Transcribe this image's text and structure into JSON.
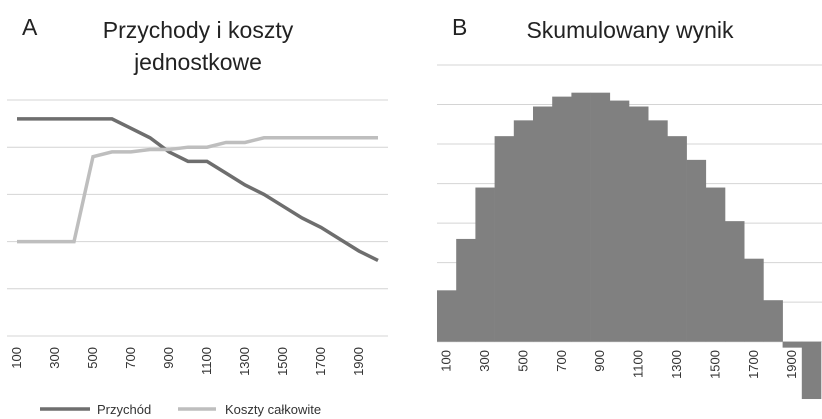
{
  "chart_data": [
    {
      "type": "line",
      "label": "A",
      "title": "Przychody i koszty jednostkowe",
      "categories": [
        100,
        null,
        300,
        null,
        500,
        null,
        700,
        null,
        900,
        null,
        1100,
        null,
        1300,
        null,
        1500,
        null,
        1700,
        null,
        1900,
        null
      ],
      "series": [
        {
          "name": "Przychód",
          "color": "#6e6e6e",
          "values": [
            4.6,
            4.6,
            4.6,
            4.6,
            4.6,
            4.6,
            4.4,
            4.2,
            3.9,
            3.7,
            3.7,
            3.45,
            3.2,
            3.0,
            2.75,
            2.5,
            2.3,
            2.05,
            1.8,
            1.6
          ]
        },
        {
          "name": "Koszty całkowite",
          "color": "#bebebe",
          "values": [
            2.0,
            2.0,
            2.0,
            2.0,
            3.8,
            3.9,
            3.9,
            3.95,
            3.95,
            4.0,
            4.0,
            4.1,
            4.1,
            4.2,
            4.2,
            4.2,
            4.2,
            4.2,
            4.2,
            4.2
          ]
        }
      ],
      "ylim": [
        0,
        5
      ],
      "yticks": [
        0,
        1,
        2,
        3,
        4,
        5
      ],
      "grid": true,
      "legend": "bottom"
    },
    {
      "type": "bar",
      "label": "B",
      "title": "Skumulowany wynik",
      "categories": [
        100,
        null,
        300,
        null,
        500,
        null,
        700,
        null,
        900,
        null,
        1100,
        null,
        1300,
        null,
        1500,
        null,
        1700,
        null,
        1900,
        null
      ],
      "values": [
        1.3,
        2.6,
        3.9,
        5.2,
        5.6,
        5.95,
        6.2,
        6.3,
        6.3,
        6.1,
        5.95,
        5.6,
        5.2,
        4.6,
        3.9,
        3.05,
        2.1,
        1.05,
        -0.15,
        -1.45
      ],
      "color": "#808080",
      "ylim": [
        -1.5,
        7
      ],
      "yticks": [
        0,
        1,
        2,
        3,
        4,
        5,
        6,
        7
      ],
      "grid": true
    }
  ]
}
